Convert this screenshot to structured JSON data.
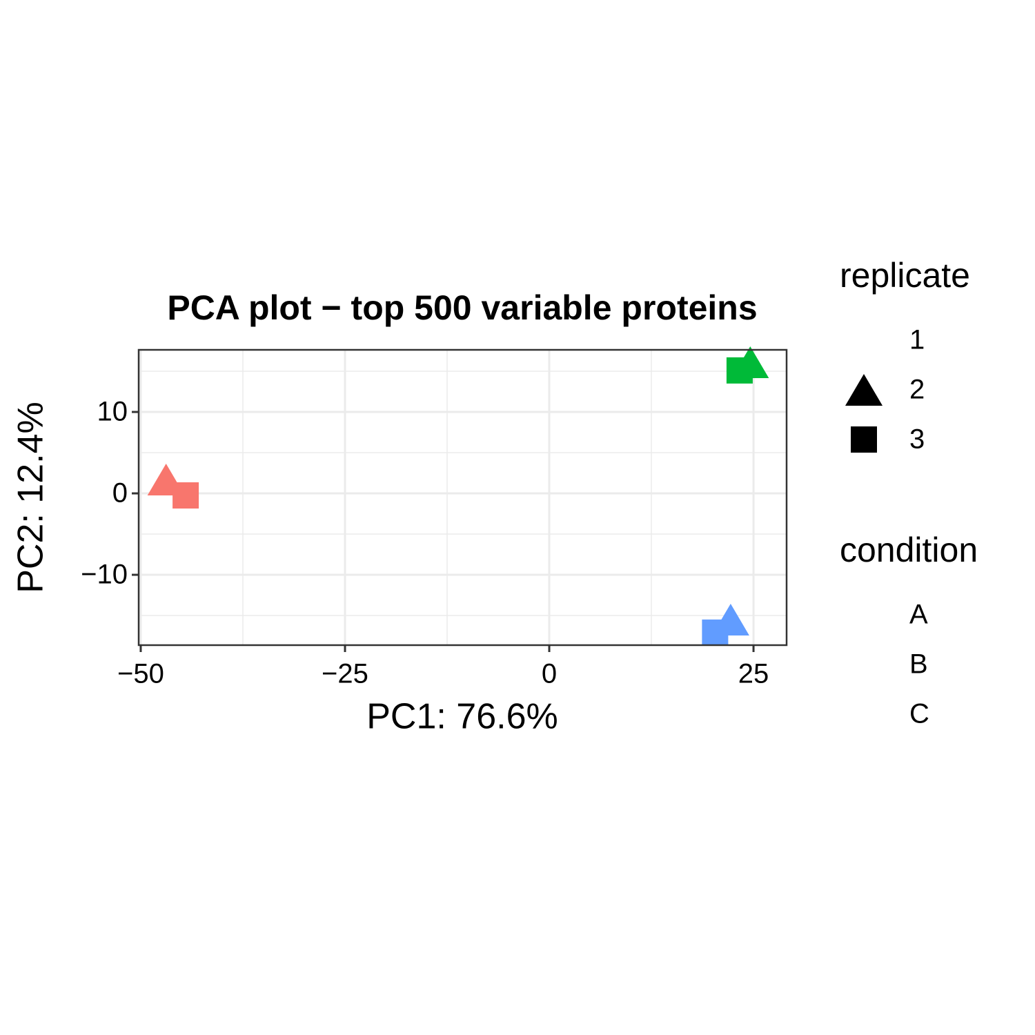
{
  "chart_data": {
    "type": "scatter",
    "title": "PCA plot − top 500 variable proteins",
    "x_label": "PC1: 76.6%",
    "y_label": "PC2: 12.4%",
    "xlim": [
      -50.25,
      29.05
    ],
    "ylim": [
      -18.64,
      17.63
    ],
    "xticks": [
      {
        "value": -50,
        "label": "−50"
      },
      {
        "value": -25,
        "label": "−25"
      },
      0,
      25
    ],
    "yticks": [
      {
        "value": -10,
        "label": "−10"
      },
      0,
      10
    ],
    "x_minor_ticks": [
      -37.5,
      -12.5,
      12.5
    ],
    "y_minor_ticks": [
      -15,
      -5,
      5,
      15
    ],
    "grid": true,
    "series": [
      {
        "name": "A",
        "color": "#F8766D",
        "x": [
          -46.9,
          -44.5
        ],
        "values": [
          1.7,
          -0.25
        ],
        "shapes": [
          "triangle",
          "square"
        ]
      },
      {
        "name": "B",
        "color": "#00BA38",
        "x": [
          24.6,
          23.3
        ],
        "values": [
          16.1,
          15.1
        ],
        "shapes": [
          "triangle",
          "square"
        ]
      },
      {
        "name": "C",
        "color": "#619CFF",
        "x": [
          22.2,
          20.3
        ],
        "values": [
          -15.5,
          -17.1
        ],
        "shapes": [
          "triangle",
          "square"
        ]
      }
    ],
    "shape_legend": {
      "title": "replicate",
      "labels": [
        "1",
        "2",
        "3"
      ],
      "shapes": [
        null,
        "triangle",
        "square"
      ]
    },
    "color_legend_title": "condition"
  }
}
